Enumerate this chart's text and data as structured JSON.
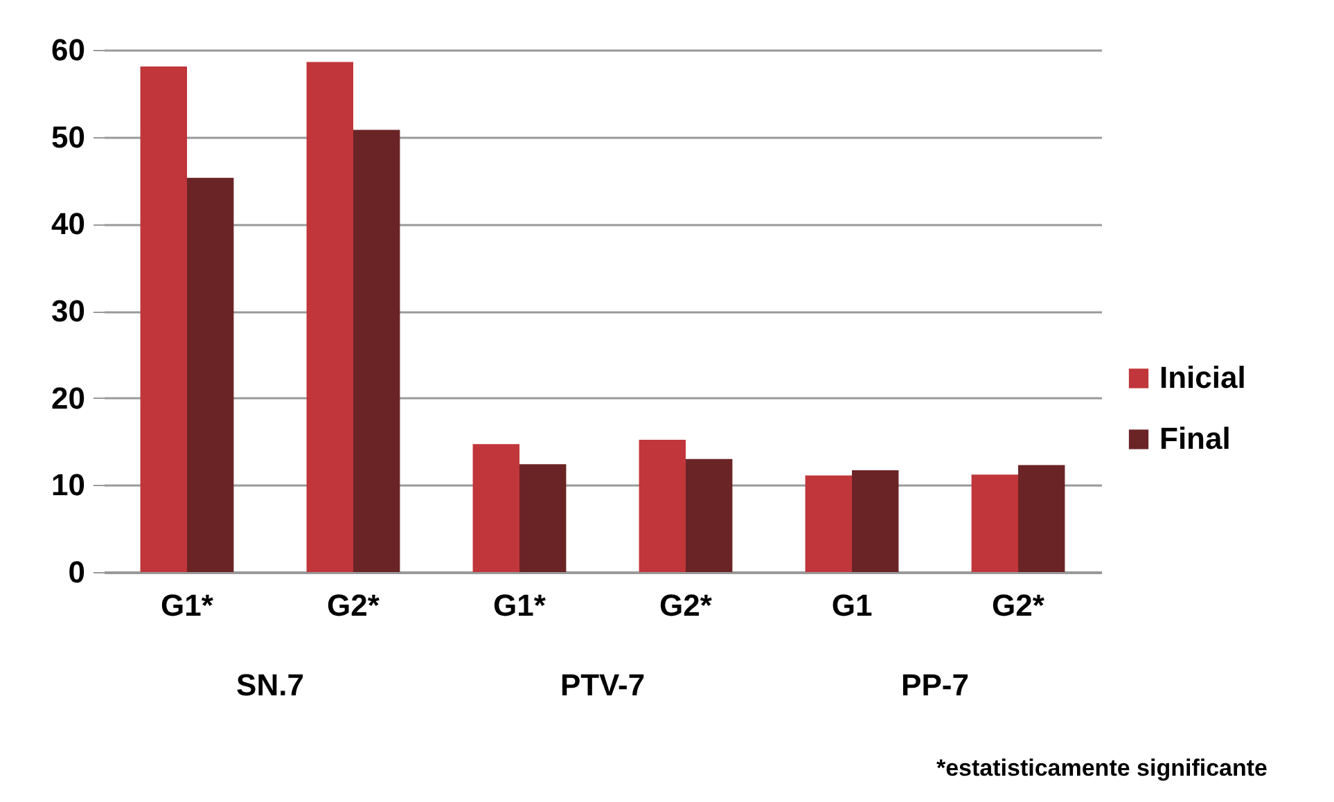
{
  "chart_data": {
    "type": "bar",
    "categories": [
      "G1*",
      "G2*",
      "G1*",
      "G2*",
      "G1",
      "G2*"
    ],
    "series": [
      {
        "name": "Inicial",
        "color": "#c0363a",
        "values": [
          58.1,
          58.6,
          14.7,
          15.2,
          11.1,
          11.2
        ]
      },
      {
        "name": "Final",
        "color": "#6b2426",
        "values": [
          45.3,
          50.8,
          12.4,
          13.0,
          11.7,
          12.3
        ]
      }
    ],
    "ylim": [
      0,
      60
    ],
    "yticks": [
      0,
      10,
      20,
      30,
      40,
      50,
      60
    ],
    "grid": "y",
    "legend": "right",
    "annotations": [
      "SN.7",
      "PTV-7",
      "PP-7",
      "*estatisticamente significante"
    ]
  }
}
